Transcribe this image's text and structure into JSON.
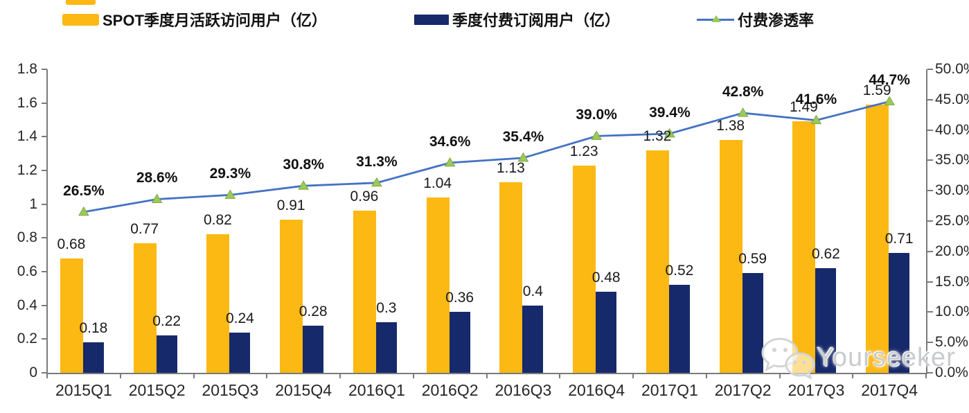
{
  "legend": [
    {
      "label": "SPOT季度月活跃访问用户（亿）",
      "type": "bar",
      "color": "#FCB813"
    },
    {
      "label": "季度付费订阅用户（亿）",
      "type": "bar",
      "color": "#16296B"
    },
    {
      "label": "付费渗透率",
      "type": "line",
      "color": "#4472C4",
      "marker_color": "#9BC95A"
    }
  ],
  "chart_data": {
    "type": "bar",
    "subtype": "grouped-bars-with-line",
    "categories": [
      "2015Q1",
      "2015Q2",
      "2015Q3",
      "2015Q4",
      "2016Q1",
      "2016Q2",
      "2016Q3",
      "2016Q4",
      "2017Q1",
      "2017Q2",
      "2017Q3",
      "2017Q4"
    ],
    "series": [
      {
        "name": "SPOT季度月活跃访问用户（亿）",
        "type": "bar",
        "axis": "left",
        "color": "#FCB813",
        "values": [
          0.68,
          0.77,
          0.82,
          0.91,
          0.96,
          1.04,
          1.13,
          1.23,
          1.32,
          1.38,
          1.49,
          1.59
        ],
        "labels": [
          "0.68",
          "0.77",
          "0.82",
          "0.91",
          "0.96",
          "1.04",
          "1.13",
          "1.23",
          "1.32",
          "1.38",
          "1.49",
          "1.59"
        ]
      },
      {
        "name": "季度付费订阅用户（亿）",
        "type": "bar",
        "axis": "left",
        "color": "#16296B",
        "values": [
          0.18,
          0.22,
          0.24,
          0.28,
          0.3,
          0.36,
          0.4,
          0.48,
          0.52,
          0.59,
          0.62,
          0.71
        ],
        "labels": [
          "0.18",
          "0.22",
          "0.24",
          "0.28",
          "0.3",
          "0.36",
          "0.4",
          "0.48",
          "0.52",
          "0.59",
          "0.62",
          "0.71"
        ]
      },
      {
        "name": "付费渗透率",
        "type": "line",
        "axis": "right",
        "color": "#4472C4",
        "marker": "triangle",
        "marker_color": "#9BC95A",
        "values": [
          26.5,
          28.6,
          29.3,
          30.8,
          31.3,
          34.6,
          35.4,
          39.0,
          39.4,
          42.8,
          41.6,
          44.7
        ],
        "labels": [
          "26.5%",
          "28.6%",
          "29.3%",
          "30.8%",
          "31.3%",
          "34.6%",
          "35.4%",
          "39.0%",
          "39.4%",
          "42.8%",
          "41.6%",
          "44.7%"
        ]
      }
    ],
    "left_axis": {
      "min": 0,
      "max": 1.8,
      "step": 0.2,
      "ticks": [
        "0",
        "0.2",
        "0.4",
        "0.6",
        "0.8",
        "1",
        "1.2",
        "1.4",
        "1.6",
        "1.8"
      ]
    },
    "right_axis": {
      "min": 0,
      "max": 50,
      "step": 5,
      "ticks": [
        "0.0%",
        "5.0%",
        "10.0%",
        "15.0%",
        "20.0%",
        "25.0%",
        "30.0%",
        "35.0%",
        "40.0%",
        "45.0%",
        "50.0%"
      ]
    },
    "grid": false,
    "legend_position": "top",
    "title": ""
  },
  "watermark": {
    "text": "Yourseeker",
    "icon": "wechat-icon"
  }
}
